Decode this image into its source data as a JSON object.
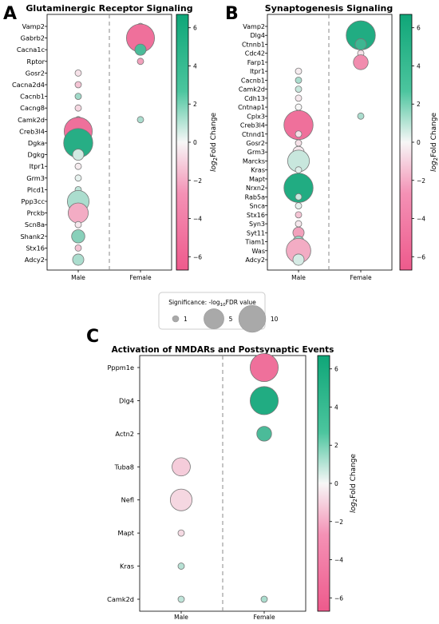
{
  "colormap": {
    "neg": "#ee5a8c",
    "mid": "#f7f7f7",
    "pos": "#0fa678"
  },
  "size_legend": {
    "title": "Significance: -log",
    "title_sub": "10",
    "title_tail": "FDR value",
    "entries": [
      {
        "label": "1",
        "value": 1
      },
      {
        "label": "5",
        "value": 5
      },
      {
        "label": "10",
        "value": 10
      }
    ]
  },
  "chart_data": [
    {
      "panel_letter": "A",
      "type": "scatter",
      "title": "Glutaminergic Receptor Signaling",
      "xlabel": "",
      "ylabel": "",
      "categories": [
        "Male",
        "Female"
      ],
      "genes": [
        "Vamp2",
        "Gabrb2",
        "Cacna1c",
        "Rptor",
        "Gosr2",
        "Cacna2d4",
        "Cacnb1",
        "Cacng8",
        "Camk2d",
        "Creb3l4",
        "Dgka",
        "Dgkg",
        "Itpr1",
        "Grm3",
        "Plcd1",
        "Ppp3cc",
        "Prckb",
        "Scn8a",
        "Shank2",
        "Stx16",
        "Adcy2"
      ],
      "colorbar": {
        "label_main": "log",
        "label_sub": "2",
        "label_tail": "Fold Change",
        "range": [
          -6.7,
          6.7
        ],
        "ticks": [
          6,
          4,
          2,
          0,
          -2,
          -4,
          -6
        ]
      },
      "points": [
        {
          "gene": "Vamp2",
          "group": "Female",
          "log2fc": 0.8,
          "significance": 1
        },
        {
          "gene": "Gabrb2",
          "group": "Female",
          "log2fc": -5.5,
          "significance": 11
        },
        {
          "gene": "Cacna1c",
          "group": "Female",
          "log2fc": 4.5,
          "significance": 1.5
        },
        {
          "gene": "Rptor",
          "group": "Female",
          "log2fc": -3.0,
          "significance": 1
        },
        {
          "gene": "Gosr2",
          "group": "Male",
          "log2fc": -0.5,
          "significance": 1
        },
        {
          "gene": "Cacna2d4",
          "group": "Male",
          "log2fc": -1.5,
          "significance": 1
        },
        {
          "gene": "Cacnb1",
          "group": "Male",
          "log2fc": 1.8,
          "significance": 1
        },
        {
          "gene": "Cacng8",
          "group": "Male",
          "log2fc": -0.8,
          "significance": 1
        },
        {
          "gene": "Camk2d",
          "group": "Male",
          "log2fc": 1.2,
          "significance": 1
        },
        {
          "gene": "Camk2d",
          "group": "Female",
          "log2fc": 1.5,
          "significance": 1
        },
        {
          "gene": "Creb3l4",
          "group": "Male",
          "log2fc": -5.5,
          "significance": 11
        },
        {
          "gene": "Dgka",
          "group": "Male",
          "log2fc": 5.8,
          "significance": 12
        },
        {
          "gene": "Dgkg",
          "group": "Male",
          "log2fc": 0.6,
          "significance": 1.5
        },
        {
          "gene": "Itpr1",
          "group": "Male",
          "log2fc": -0.2,
          "significance": 1
        },
        {
          "gene": "Grm3",
          "group": "Male",
          "log2fc": 0.2,
          "significance": 1
        },
        {
          "gene": "Plcd1",
          "group": "Male",
          "log2fc": 1.0,
          "significance": 1
        },
        {
          "gene": "Ppp3cc",
          "group": "Male",
          "log2fc": 1.5,
          "significance": 6
        },
        {
          "gene": "Prckb",
          "group": "Male",
          "log2fc": -2.5,
          "significance": 5
        },
        {
          "gene": "Scn8a",
          "group": "Male",
          "log2fc": -0.3,
          "significance": 1
        },
        {
          "gene": "Shank2",
          "group": "Male",
          "log2fc": 2.5,
          "significance": 2
        },
        {
          "gene": "Stx16",
          "group": "Male",
          "log2fc": -1.5,
          "significance": 1
        },
        {
          "gene": "Adcy2",
          "group": "Male",
          "log2fc": 1.5,
          "significance": 1.5
        }
      ]
    },
    {
      "panel_letter": "B",
      "type": "scatter",
      "title": "Synaptogenesis Signaling",
      "xlabel": "",
      "ylabel": "",
      "categories": [
        "Male",
        "Female"
      ],
      "genes": [
        "Vamp2",
        "Dlg4",
        "Ctnnb1",
        "Cdc42",
        "Farp1",
        "Itpr1",
        "Cacnb1",
        "Camk2d",
        "Cdh13",
        "Cntnap1",
        "Cplx3",
        "Creb3l4",
        "Ctnnd1",
        "Gosr2",
        "Grm3",
        "Marcks",
        "Kras",
        "Mapt",
        "Nrxn2",
        "Rab5a",
        "Snca",
        "Stx16",
        "Syn3",
        "Syt11",
        "Tiam1",
        "Was",
        "Adcy2"
      ],
      "colorbar": {
        "label_main": "log",
        "label_sub": "2",
        "label_tail": "Fold Change",
        "range": [
          -6.7,
          6.7
        ],
        "ticks": [
          6,
          4,
          2,
          0,
          -2,
          -4,
          -6
        ]
      },
      "points": [
        {
          "gene": "Vamp2",
          "group": "Female",
          "log2fc": 1.0,
          "significance": 1
        },
        {
          "gene": "Dlg4",
          "group": "Female",
          "log2fc": 6.0,
          "significance": 12
        },
        {
          "gene": "Ctnnb1",
          "group": "Female",
          "log2fc": 5.0,
          "significance": 1.5
        },
        {
          "gene": "Cdc42",
          "group": "Female",
          "log2fc": -0.5,
          "significance": 1
        },
        {
          "gene": "Farp1",
          "group": "Female",
          "log2fc": -4.0,
          "significance": 2.5
        },
        {
          "gene": "Cplx3",
          "group": "Female",
          "log2fc": 1.5,
          "significance": 1
        },
        {
          "gene": "Itpr1",
          "group": "Male",
          "log2fc": -0.2,
          "significance": 1
        },
        {
          "gene": "Cacnb1",
          "group": "Male",
          "log2fc": 1.5,
          "significance": 1
        },
        {
          "gene": "Camk2d",
          "group": "Male",
          "log2fc": 0.8,
          "significance": 1
        },
        {
          "gene": "Cdh13",
          "group": "Male",
          "log2fc": -0.3,
          "significance": 1
        },
        {
          "gene": "Cntnap1",
          "group": "Male",
          "log2fc": 0.0,
          "significance": 1
        },
        {
          "gene": "Cplx3",
          "group": "Male",
          "log2fc": 1.0,
          "significance": 1.5
        },
        {
          "gene": "Creb3l4",
          "group": "Male",
          "log2fc": -5.5,
          "significance": 12
        },
        {
          "gene": "Ctnnd1",
          "group": "Male",
          "log2fc": -0.5,
          "significance": 1
        },
        {
          "gene": "Gosr2",
          "group": "Male",
          "log2fc": -0.5,
          "significance": 1
        },
        {
          "gene": "Grm3",
          "group": "Male",
          "log2fc": -0.3,
          "significance": 1.5
        },
        {
          "gene": "Marcks",
          "group": "Male",
          "log2fc": 0.8,
          "significance": 6
        },
        {
          "gene": "Kras",
          "group": "Male",
          "log2fc": 0.3,
          "significance": 1
        },
        {
          "gene": "Mapt",
          "group": "Male",
          "log2fc": 0.0,
          "significance": 1
        },
        {
          "gene": "Nrxn2",
          "group": "Male",
          "log2fc": 6.0,
          "significance": 12
        },
        {
          "gene": "Rab5a",
          "group": "Male",
          "log2fc": 0.8,
          "significance": 1
        },
        {
          "gene": "Snca",
          "group": "Male",
          "log2fc": 0.2,
          "significance": 1
        },
        {
          "gene": "Stx16",
          "group": "Male",
          "log2fc": -1.5,
          "significance": 1
        },
        {
          "gene": "Syn3",
          "group": "Male",
          "log2fc": -0.3,
          "significance": 1
        },
        {
          "gene": "Syt11",
          "group": "Male",
          "log2fc": -3.0,
          "significance": 1.5
        },
        {
          "gene": "Tiam1",
          "group": "Male",
          "log2fc": 2.0,
          "significance": 1.5
        },
        {
          "gene": "Was",
          "group": "Male",
          "log2fc": -2.5,
          "significance": 8
        },
        {
          "gene": "Adcy2",
          "group": "Male",
          "log2fc": 0.5,
          "significance": 1.5
        }
      ]
    },
    {
      "panel_letter": "C",
      "type": "scatter",
      "title": "Activation of NMDARs and Postsynaptic Events",
      "xlabel": "",
      "ylabel": "",
      "categories": [
        "Male",
        "Female"
      ],
      "genes": [
        "Pppm1e",
        "Dlg4",
        "Actn2",
        "Tuba8",
        "Nefl",
        "Mapt",
        "Kras",
        "Camk2d"
      ],
      "colorbar": {
        "label_main": "log",
        "label_sub": "2",
        "label_tail": "Fold Change",
        "range": [
          -6.7,
          6.7
        ],
        "ticks": [
          6,
          4,
          2,
          0,
          -2,
          -4,
          -6
        ]
      },
      "points": [
        {
          "gene": "Pppm1e",
          "group": "Female",
          "log2fc": -5.5,
          "significance": 11
        },
        {
          "gene": "Dlg4",
          "group": "Female",
          "log2fc": 6.0,
          "significance": 11
        },
        {
          "gene": "Actn2",
          "group": "Female",
          "log2fc": 4.5,
          "significance": 2.5
        },
        {
          "gene": "Tuba8",
          "group": "Male",
          "log2fc": -1.2,
          "significance": 4
        },
        {
          "gene": "Nefl",
          "group": "Male",
          "log2fc": -0.8,
          "significance": 6
        },
        {
          "gene": "Mapt",
          "group": "Male",
          "log2fc": -0.7,
          "significance": 1
        },
        {
          "gene": "Kras",
          "group": "Male",
          "log2fc": 1.2,
          "significance": 1
        },
        {
          "gene": "Camk2d",
          "group": "Male",
          "log2fc": 1.0,
          "significance": 1
        },
        {
          "gene": "Camk2d",
          "group": "Female",
          "log2fc": 1.5,
          "significance": 1
        }
      ]
    }
  ]
}
